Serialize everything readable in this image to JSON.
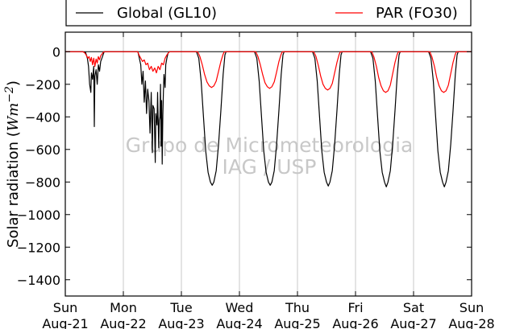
{
  "chart_data": {
    "type": "line",
    "ylabel": "Solar radiation (Wm−2)",
    "ylabel_plain": "Solar radiation (",
    "ylabel_unit_main": "Wm",
    "ylabel_unit_exp": "−2",
    "ylabel_close": ")",
    "xlabel": "",
    "ylim": [
      -1500,
      120
    ],
    "yticks": [
      0,
      -200,
      -400,
      -600,
      -800,
      -1000,
      -1200,
      -1400
    ],
    "ytick_labels": [
      "0",
      "−200",
      "−400",
      "−600",
      "−800",
      "−1000",
      "−1200",
      "−1400"
    ],
    "xlim": [
      0,
      7
    ],
    "xticks": [
      {
        "day": 0,
        "weekday": "Sun",
        "date": "Aug-21"
      },
      {
        "day": 1,
        "weekday": "Mon",
        "date": "Aug-22"
      },
      {
        "day": 2,
        "weekday": "Tue",
        "date": "Aug-23"
      },
      {
        "day": 3,
        "weekday": "Wed",
        "date": "Aug-24"
      },
      {
        "day": 4,
        "weekday": "Thu",
        "date": "Aug-25"
      },
      {
        "day": 5,
        "weekday": "Fri",
        "date": "Aug-26"
      },
      {
        "day": 6,
        "weekday": "Sat",
        "date": "Aug-27"
      },
      {
        "day": 7,
        "weekday": "Sun",
        "date": "Aug-28"
      }
    ],
    "grid": "vertical",
    "legend_position": "top",
    "watermark": [
      "Grupo de Micrometeorologia",
      "IAG / USP"
    ],
    "series": [
      {
        "name": "Global (GL10)",
        "color": "#000000",
        "points": [
          [
            0,
            0
          ],
          [
            0.3,
            0
          ],
          [
            0.35,
            -5
          ],
          [
            0.38,
            -40
          ],
          [
            0.4,
            -90
          ],
          [
            0.42,
            -200
          ],
          [
            0.44,
            -250
          ],
          [
            0.45,
            -130
          ],
          [
            0.47,
            -170
          ],
          [
            0.49,
            -90
          ],
          [
            0.5,
            -460
          ],
          [
            0.51,
            -150
          ],
          [
            0.53,
            -110
          ],
          [
            0.55,
            -200
          ],
          [
            0.57,
            -80
          ],
          [
            0.59,
            -120
          ],
          [
            0.61,
            -60
          ],
          [
            0.63,
            -40
          ],
          [
            0.65,
            -20
          ],
          [
            0.67,
            0
          ],
          [
            1.25,
            0
          ],
          [
            1.27,
            -30
          ],
          [
            1.3,
            -80
          ],
          [
            1.32,
            -200
          ],
          [
            1.34,
            -120
          ],
          [
            1.36,
            -310
          ],
          [
            1.38,
            -180
          ],
          [
            1.4,
            -380
          ],
          [
            1.42,
            -230
          ],
          [
            1.44,
            -300
          ],
          [
            1.46,
            -500
          ],
          [
            1.48,
            -250
          ],
          [
            1.5,
            -620
          ],
          [
            1.51,
            -330
          ],
          [
            1.53,
            -350
          ],
          [
            1.55,
            -680
          ],
          [
            1.56,
            -380
          ],
          [
            1.58,
            -450
          ],
          [
            1.59,
            -250
          ],
          [
            1.61,
            -590
          ],
          [
            1.62,
            -420
          ],
          [
            1.63,
            -400
          ],
          [
            1.64,
            -200
          ],
          [
            1.65,
            -580
          ],
          [
            1.66,
            -300
          ],
          [
            1.67,
            -690
          ],
          [
            1.68,
            -390
          ],
          [
            1.69,
            -250
          ],
          [
            1.7,
            -140
          ],
          [
            1.72,
            -220
          ],
          [
            1.73,
            -80
          ],
          [
            1.75,
            -40
          ],
          [
            1.77,
            -10
          ],
          [
            1.79,
            0
          ],
          [
            2.26,
            0
          ],
          [
            2.3,
            -40
          ],
          [
            2.34,
            -180
          ],
          [
            2.38,
            -400
          ],
          [
            2.42,
            -610
          ],
          [
            2.46,
            -740
          ],
          [
            2.5,
            -800
          ],
          [
            2.53,
            -820
          ],
          [
            2.56,
            -800
          ],
          [
            2.6,
            -730
          ],
          [
            2.64,
            -570
          ],
          [
            2.68,
            -360
          ],
          [
            2.72,
            -140
          ],
          [
            2.75,
            -20
          ],
          [
            2.77,
            0
          ],
          [
            3.26,
            0
          ],
          [
            3.3,
            -40
          ],
          [
            3.34,
            -180
          ],
          [
            3.38,
            -400
          ],
          [
            3.42,
            -610
          ],
          [
            3.46,
            -740
          ],
          [
            3.5,
            -800
          ],
          [
            3.53,
            -820
          ],
          [
            3.56,
            -800
          ],
          [
            3.6,
            -730
          ],
          [
            3.64,
            -570
          ],
          [
            3.68,
            -360
          ],
          [
            3.72,
            -140
          ],
          [
            3.75,
            -20
          ],
          [
            3.77,
            0
          ],
          [
            4.26,
            0
          ],
          [
            4.3,
            -40
          ],
          [
            4.34,
            -180
          ],
          [
            4.38,
            -400
          ],
          [
            4.42,
            -610
          ],
          [
            4.46,
            -740
          ],
          [
            4.5,
            -800
          ],
          [
            4.53,
            -825
          ],
          [
            4.56,
            -800
          ],
          [
            4.6,
            -730
          ],
          [
            4.64,
            -570
          ],
          [
            4.68,
            -360
          ],
          [
            4.72,
            -140
          ],
          [
            4.75,
            -20
          ],
          [
            4.77,
            0
          ],
          [
            5.26,
            0
          ],
          [
            5.3,
            -40
          ],
          [
            5.34,
            -180
          ],
          [
            5.38,
            -400
          ],
          [
            5.42,
            -610
          ],
          [
            5.46,
            -740
          ],
          [
            5.5,
            -800
          ],
          [
            5.53,
            -830
          ],
          [
            5.56,
            -800
          ],
          [
            5.6,
            -730
          ],
          [
            5.64,
            -570
          ],
          [
            5.68,
            -360
          ],
          [
            5.72,
            -140
          ],
          [
            5.75,
            -20
          ],
          [
            5.77,
            0
          ],
          [
            6.26,
            0
          ],
          [
            6.3,
            -40
          ],
          [
            6.34,
            -180
          ],
          [
            6.38,
            -400
          ],
          [
            6.42,
            -610
          ],
          [
            6.46,
            -740
          ],
          [
            6.5,
            -800
          ],
          [
            6.53,
            -830
          ],
          [
            6.56,
            -800
          ],
          [
            6.6,
            -730
          ],
          [
            6.64,
            -570
          ],
          [
            6.68,
            -360
          ],
          [
            6.72,
            -140
          ],
          [
            6.75,
            -20
          ],
          [
            6.77,
            0
          ],
          [
            7,
            0
          ]
        ]
      },
      {
        "name": "PAR (FO30)",
        "color": "#ff0000",
        "points": [
          [
            0,
            0
          ],
          [
            0.3,
            0
          ],
          [
            0.33,
            -5
          ],
          [
            0.36,
            -20
          ],
          [
            0.39,
            -40
          ],
          [
            0.41,
            -30
          ],
          [
            0.43,
            -60
          ],
          [
            0.45,
            -35
          ],
          [
            0.47,
            -80
          ],
          [
            0.49,
            -40
          ],
          [
            0.51,
            -90
          ],
          [
            0.53,
            -45
          ],
          [
            0.55,
            -70
          ],
          [
            0.57,
            -30
          ],
          [
            0.59,
            -50
          ],
          [
            0.61,
            -25
          ],
          [
            0.63,
            -15
          ],
          [
            0.65,
            -5
          ],
          [
            0.67,
            0
          ],
          [
            1.25,
            0
          ],
          [
            1.27,
            -20
          ],
          [
            1.3,
            -40
          ],
          [
            1.33,
            -60
          ],
          [
            1.36,
            -50
          ],
          [
            1.39,
            -80
          ],
          [
            1.42,
            -70
          ],
          [
            1.45,
            -110
          ],
          [
            1.48,
            -90
          ],
          [
            1.51,
            -120
          ],
          [
            1.54,
            -100
          ],
          [
            1.57,
            -130
          ],
          [
            1.6,
            -90
          ],
          [
            1.63,
            -110
          ],
          [
            1.66,
            -70
          ],
          [
            1.69,
            -80
          ],
          [
            1.72,
            -40
          ],
          [
            1.75,
            -20
          ],
          [
            1.78,
            -5
          ],
          [
            1.8,
            0
          ],
          [
            2.28,
            0
          ],
          [
            2.32,
            -30
          ],
          [
            2.36,
            -80
          ],
          [
            2.4,
            -140
          ],
          [
            2.44,
            -185
          ],
          [
            2.48,
            -210
          ],
          [
            2.52,
            -220
          ],
          [
            2.56,
            -210
          ],
          [
            2.6,
            -180
          ],
          [
            2.64,
            -120
          ],
          [
            2.68,
            -60
          ],
          [
            2.72,
            -15
          ],
          [
            2.74,
            0
          ],
          [
            3.28,
            0
          ],
          [
            3.32,
            -30
          ],
          [
            3.36,
            -80
          ],
          [
            3.4,
            -140
          ],
          [
            3.44,
            -190
          ],
          [
            3.48,
            -215
          ],
          [
            3.52,
            -225
          ],
          [
            3.56,
            -215
          ],
          [
            3.6,
            -185
          ],
          [
            3.64,
            -125
          ],
          [
            3.68,
            -60
          ],
          [
            3.72,
            -15
          ],
          [
            3.74,
            0
          ],
          [
            4.28,
            0
          ],
          [
            4.32,
            -30
          ],
          [
            4.36,
            -85
          ],
          [
            4.4,
            -150
          ],
          [
            4.44,
            -200
          ],
          [
            4.48,
            -225
          ],
          [
            4.52,
            -235
          ],
          [
            4.56,
            -225
          ],
          [
            4.6,
            -195
          ],
          [
            4.64,
            -130
          ],
          [
            4.68,
            -65
          ],
          [
            4.72,
            -15
          ],
          [
            4.74,
            0
          ],
          [
            5.28,
            0
          ],
          [
            5.32,
            -35
          ],
          [
            5.36,
            -90
          ],
          [
            5.4,
            -160
          ],
          [
            5.44,
            -210
          ],
          [
            5.48,
            -240
          ],
          [
            5.52,
            -250
          ],
          [
            5.56,
            -240
          ],
          [
            5.6,
            -205
          ],
          [
            5.64,
            -135
          ],
          [
            5.68,
            -65
          ],
          [
            5.72,
            -15
          ],
          [
            5.74,
            0
          ],
          [
            6.28,
            0
          ],
          [
            6.32,
            -35
          ],
          [
            6.36,
            -90
          ],
          [
            6.4,
            -160
          ],
          [
            6.44,
            -210
          ],
          [
            6.48,
            -240
          ],
          [
            6.52,
            -250
          ],
          [
            6.56,
            -240
          ],
          [
            6.6,
            -205
          ],
          [
            6.64,
            -135
          ],
          [
            6.68,
            -65
          ],
          [
            6.72,
            -15
          ],
          [
            6.74,
            0
          ],
          [
            7,
            0
          ]
        ]
      }
    ]
  }
}
